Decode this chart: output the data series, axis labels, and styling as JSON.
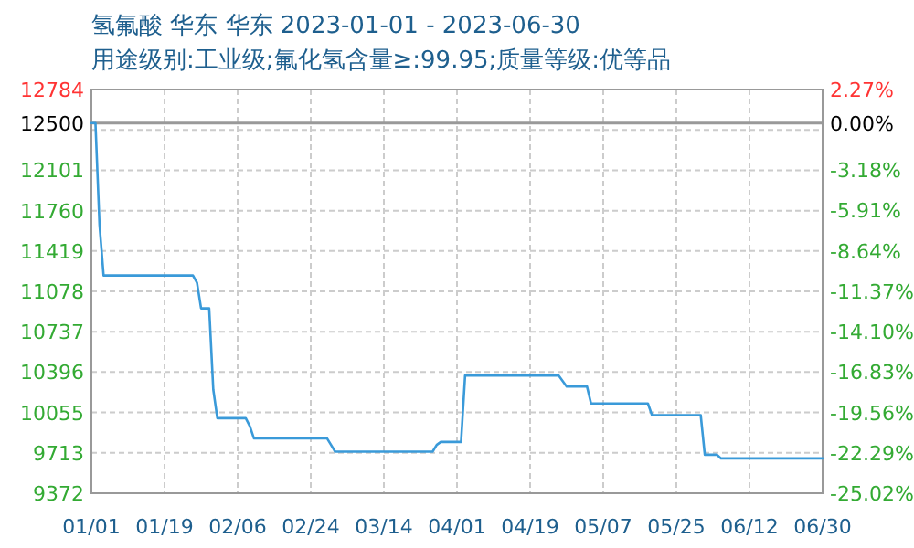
{
  "chart_data": {
    "type": "line",
    "title": "氢氟酸 华东 华东 2023-01-01 - 2023-06-30",
    "subtitle": "用途级别:工业级;氟化氢含量≥:99.95;质量等级:优等品",
    "x": [
      "2023-01-01",
      "2023-01-02",
      "2023-01-03",
      "2023-01-04",
      "2023-01-26",
      "2023-01-27",
      "2023-01-28",
      "2023-01-30",
      "2023-01-31",
      "2023-02-01",
      "2023-02-08",
      "2023-02-09",
      "2023-02-10",
      "2023-02-28",
      "2023-03-01",
      "2023-03-02",
      "2023-03-26",
      "2023-03-27",
      "2023-03-28",
      "2023-04-02",
      "2023-04-03",
      "2023-04-26",
      "2023-04-28",
      "2023-05-03",
      "2023-05-04",
      "2023-05-18",
      "2023-05-19",
      "2023-05-31",
      "2023-06-01",
      "2023-06-04",
      "2023-06-05",
      "2023-06-30"
    ],
    "series": [
      {
        "color": "#3a9ad9",
        "values": [
          12500,
          12500,
          11640,
          11212,
          11212,
          11150,
          10934,
          10934,
          10248,
          10006,
          10006,
          9939,
          9836,
          9836,
          9780,
          9723,
          9723,
          9780,
          9805,
          9805,
          10367,
          10367,
          10274,
          10274,
          10130,
          10130,
          10032,
          10032,
          9697,
          9697,
          9666,
          9666
        ]
      }
    ],
    "xlim": [
      "2023-01-01",
      "2023-06-30"
    ],
    "xticks": [
      {
        "value": "2023-01-01",
        "label": "01/01"
      },
      {
        "value": "2023-01-19",
        "label": "01/19"
      },
      {
        "value": "2023-02-06",
        "label": "02/06"
      },
      {
        "value": "2023-02-24",
        "label": "02/24"
      },
      {
        "value": "2023-03-14",
        "label": "03/14"
      },
      {
        "value": "2023-04-01",
        "label": "04/01"
      },
      {
        "value": "2023-04-19",
        "label": "04/19"
      },
      {
        "value": "2023-05-07",
        "label": "05/07"
      },
      {
        "value": "2023-05-25",
        "label": "05/25"
      },
      {
        "value": "2023-06-12",
        "label": "06/12"
      },
      {
        "value": "2023-06-30",
        "label": "06/30"
      }
    ],
    "ylim": [
      9372,
      12784
    ],
    "yticks": [
      9372,
      9713,
      10055,
      10396,
      10737,
      11078,
      11419,
      11760,
      12101,
      {
        "value": 12442,
        "label": null
      },
      12784
    ],
    "y2lim": [
      -25.02,
      2.27
    ],
    "y2ticks": [
      {
        "value": -25.02,
        "label": "-25.02%"
      },
      {
        "value": -22.29,
        "label": "-22.29%"
      },
      {
        "value": -19.56,
        "label": "-19.56%"
      },
      {
        "value": -16.83,
        "label": "-16.83%"
      },
      {
        "value": -14.1,
        "label": "-14.10%"
      },
      {
        "value": -11.37,
        "label": "-11.37%"
      },
      {
        "value": -8.64,
        "label": "-8.64%"
      },
      {
        "value": -5.91,
        "label": "-5.91%"
      },
      {
        "value": -3.18,
        "label": "-3.18%"
      },
      {
        "value": -0.46,
        "label": null
      },
      {
        "value": 0,
        "label": "0.00%"
      },
      {
        "value": 2.27,
        "label": "2.27%"
      }
    ],
    "ref_lines": [
      {
        "axis": "y",
        "value": 12500,
        "label": "12500",
        "color": "#999999"
      }
    ],
    "grid": true
  }
}
